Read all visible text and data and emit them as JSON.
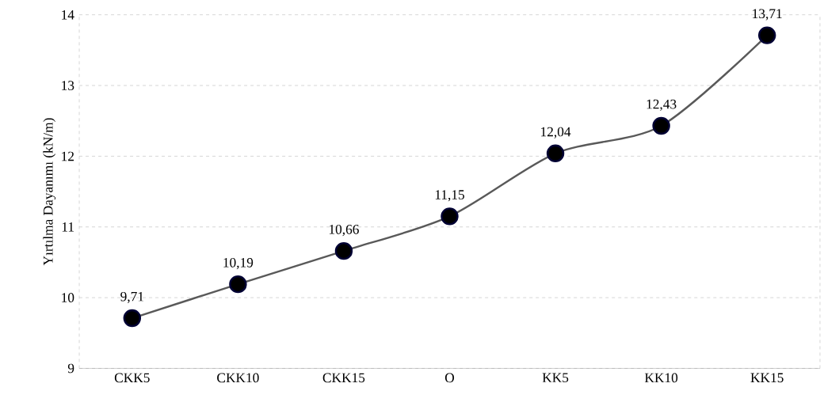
{
  "chart_data": {
    "type": "line",
    "ylabel": "Yırtılma Dayanımı  (kN/m)",
    "categories": [
      "CKK5",
      "CKK10",
      "CKK15",
      "O",
      "KK5",
      "KK10",
      "KK15"
    ],
    "values": [
      9.71,
      10.19,
      10.66,
      11.15,
      12.04,
      12.43,
      13.71
    ],
    "value_labels": [
      "9,71",
      "10,19",
      "10,66",
      "11,15",
      "12,04",
      "12,43",
      "13,71"
    ],
    "color": "#595959",
    "marker": "circle",
    "line_style": "solid",
    "ylim": [
      9,
      14
    ],
    "yticks": [
      9,
      10,
      11,
      12,
      13,
      14
    ],
    "grid": "y"
  }
}
